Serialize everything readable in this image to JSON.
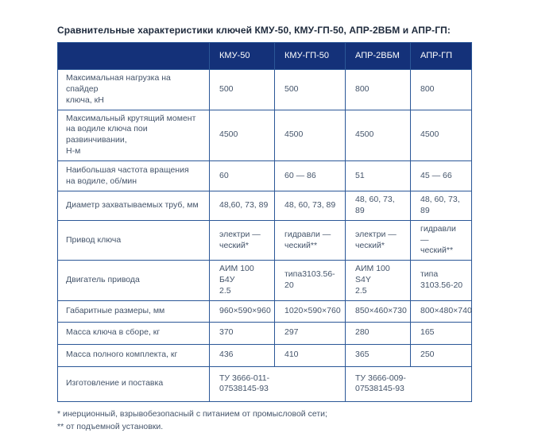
{
  "title": "Сравнительные характеристики ключей КМУ-50, КМУ-ГП-50, АПР-2ВБМ и АПР-ГП:",
  "colors": {
    "header_bg": "#143179",
    "border": "#2b5797",
    "header_text": "#ffffff",
    "body_text": "#44546a"
  },
  "table": {
    "columns": [
      "КМУ-50",
      "КМУ-ГП-50",
      "АПР-2ВБМ",
      "АПР-ГП"
    ],
    "rows": [
      {
        "label": "Максимальная нагрузка на спайдер\nключа, кН",
        "values": [
          "500",
          "500",
          "800",
          "800"
        ]
      },
      {
        "label": "Максимальный крутящий момент\nна водиле ключа пои развинчивании,\nН-м",
        "values": [
          "4500",
          "4500",
          "4500",
          "4500"
        ]
      },
      {
        "label": "Наибольшая частота вращения\nна водиле, об/мин",
        "values": [
          "60",
          "60 — 86",
          "51",
          "45 — 66"
        ]
      },
      {
        "label": "Диаметр захватываемых труб, мм",
        "values": [
          "48,60, 73, 89",
          "48, 60, 73, 89",
          "48, 60, 73, 89",
          "48, 60, 73, 89"
        ]
      },
      {
        "label": "Привод ключа",
        "values": [
          "электри —\nческий*",
          "гидравли —\nческий**",
          "электри —\nческий*",
          "гидравли —\nческий**"
        ]
      },
      {
        "label": "Двигатель привода",
        "values": [
          "АИМ 100 Б4У\n2.5",
          "типа3103.56-20",
          "АИМ 100 S4Y\n2.5",
          "типа\n3103.56-20"
        ]
      },
      {
        "label": "Габаритные размеры, мм",
        "values": [
          "960×590×960",
          "1020×590×760",
          "850×460×730",
          "800×480×740"
        ]
      },
      {
        "label": "Масса ключа в сборе, кг",
        "values": [
          "370",
          "297",
          "280",
          "165"
        ]
      },
      {
        "label": "Масса полного комплекта, кг",
        "values": [
          "436",
          "410",
          "365",
          "250"
        ]
      }
    ],
    "footer_row": {
      "label": "Изготовление и поставка",
      "values": [
        "ТУ 3666-011-\n07538145-93",
        "ТУ 3666-009-\n07538145-93"
      ]
    }
  },
  "footnotes": [
    "* инерционный, взрывобезопасный с питанием от промысловой сети;",
    "** от подъемной установки."
  ]
}
